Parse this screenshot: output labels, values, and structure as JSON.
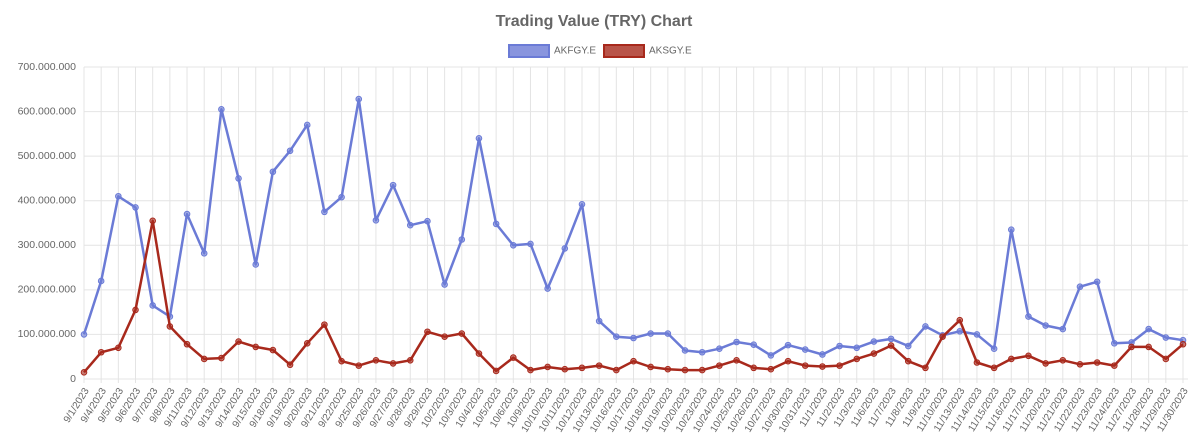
{
  "chart_data": {
    "type": "line",
    "title": "Trading Value (TRY) Chart",
    "categories": [
      "9/1/2023",
      "9/4/2023",
      "9/5/2023",
      "9/6/2023",
      "9/7/2023",
      "9/8/2023",
      "9/11/2023",
      "9/12/2023",
      "9/13/2023",
      "9/14/2023",
      "9/15/2023",
      "9/18/2023",
      "9/19/2023",
      "9/20/2023",
      "9/21/2023",
      "9/22/2023",
      "9/25/2023",
      "9/26/2023",
      "9/27/2023",
      "9/28/2023",
      "9/29/2023",
      "10/2/2023",
      "10/3/2023",
      "10/4/2023",
      "10/5/2023",
      "10/6/2023",
      "10/9/2023",
      "10/10/2023",
      "10/11/2023",
      "10/12/2023",
      "10/13/2023",
      "10/16/2023",
      "10/17/2023",
      "10/18/2023",
      "10/19/2023",
      "10/20/2023",
      "10/23/2023",
      "10/24/2023",
      "10/25/2023",
      "10/26/2023",
      "10/27/2023",
      "10/30/2023",
      "10/31/2023",
      "11/1/2023",
      "11/2/2023",
      "11/3/2023",
      "11/6/2023",
      "11/7/2023",
      "11/8/2023",
      "11/9/2023",
      "11/10/2023",
      "11/13/2023",
      "11/14/2023",
      "11/15/2023",
      "11/16/2023",
      "11/17/2023",
      "11/20/2023",
      "11/21/2023",
      "11/22/2023",
      "11/23/2023",
      "11/24/2023",
      "11/27/2023",
      "11/28/2023",
      "11/29/2023",
      "11/30/2023"
    ],
    "series": [
      {
        "name": "AKFGY.E",
        "color": "#6b7bd6",
        "values": [
          100000000,
          220000000,
          410000000,
          385000000,
          165000000,
          140000000,
          370000000,
          282000000,
          605000000,
          450000000,
          257000000,
          465000000,
          512000000,
          570000000,
          375000000,
          408000000,
          628000000,
          356000000,
          435000000,
          345000000,
          354000000,
          212000000,
          313000000,
          540000000,
          348000000,
          300000000,
          303000000,
          203000000,
          293000000,
          392000000,
          130000000,
          95000000,
          92000000,
          102000000,
          102000000,
          64000000,
          60000000,
          68000000,
          83000000,
          77000000,
          53000000,
          76000000,
          66000000,
          55000000,
          74000000,
          70000000,
          84000000,
          90000000,
          74000000,
          118000000,
          98000000,
          107000000,
          100000000,
          68000000,
          335000000,
          140000000,
          120000000,
          112000000,
          207000000,
          218000000,
          80000000,
          82000000,
          112000000,
          93000000,
          87000000
        ]
      },
      {
        "name": "AKSGY.E",
        "color": "#a8291c",
        "values": [
          15000000,
          60000000,
          70000000,
          155000000,
          355000000,
          118000000,
          78000000,
          45000000,
          47000000,
          84000000,
          72000000,
          65000000,
          32000000,
          80000000,
          122000000,
          40000000,
          30000000,
          42000000,
          35000000,
          42000000,
          106000000,
          95000000,
          102000000,
          57000000,
          18000000,
          48000000,
          20000000,
          27000000,
          22000000,
          25000000,
          30000000,
          20000000,
          40000000,
          27000000,
          22000000,
          20000000,
          20000000,
          30000000,
          42000000,
          25000000,
          22000000,
          40000000,
          30000000,
          28000000,
          30000000,
          45000000,
          57000000,
          75000000,
          40000000,
          25000000,
          95000000,
          132000000,
          37000000,
          25000000,
          45000000,
          52000000,
          35000000,
          42000000,
          33000000,
          37000000,
          30000000,
          72000000,
          72000000,
          45000000,
          78000000
        ]
      }
    ],
    "ylim": [
      0,
      700000000
    ],
    "yticks": [
      0,
      {
        "value": 100000000,
        "label": "100.000.000"
      },
      {
        "value": 200000000,
        "label": "200.000.000"
      },
      {
        "value": 300000000,
        "label": "300.000.000"
      },
      {
        "value": 400000000,
        "label": "400.000.000"
      },
      {
        "value": 500000000,
        "label": "500.000.000"
      },
      {
        "value": 600000000,
        "label": "600.000.000"
      },
      {
        "value": 700000000,
        "label": "700.000.000"
      }
    ],
    "grid": true,
    "legend": "top"
  }
}
